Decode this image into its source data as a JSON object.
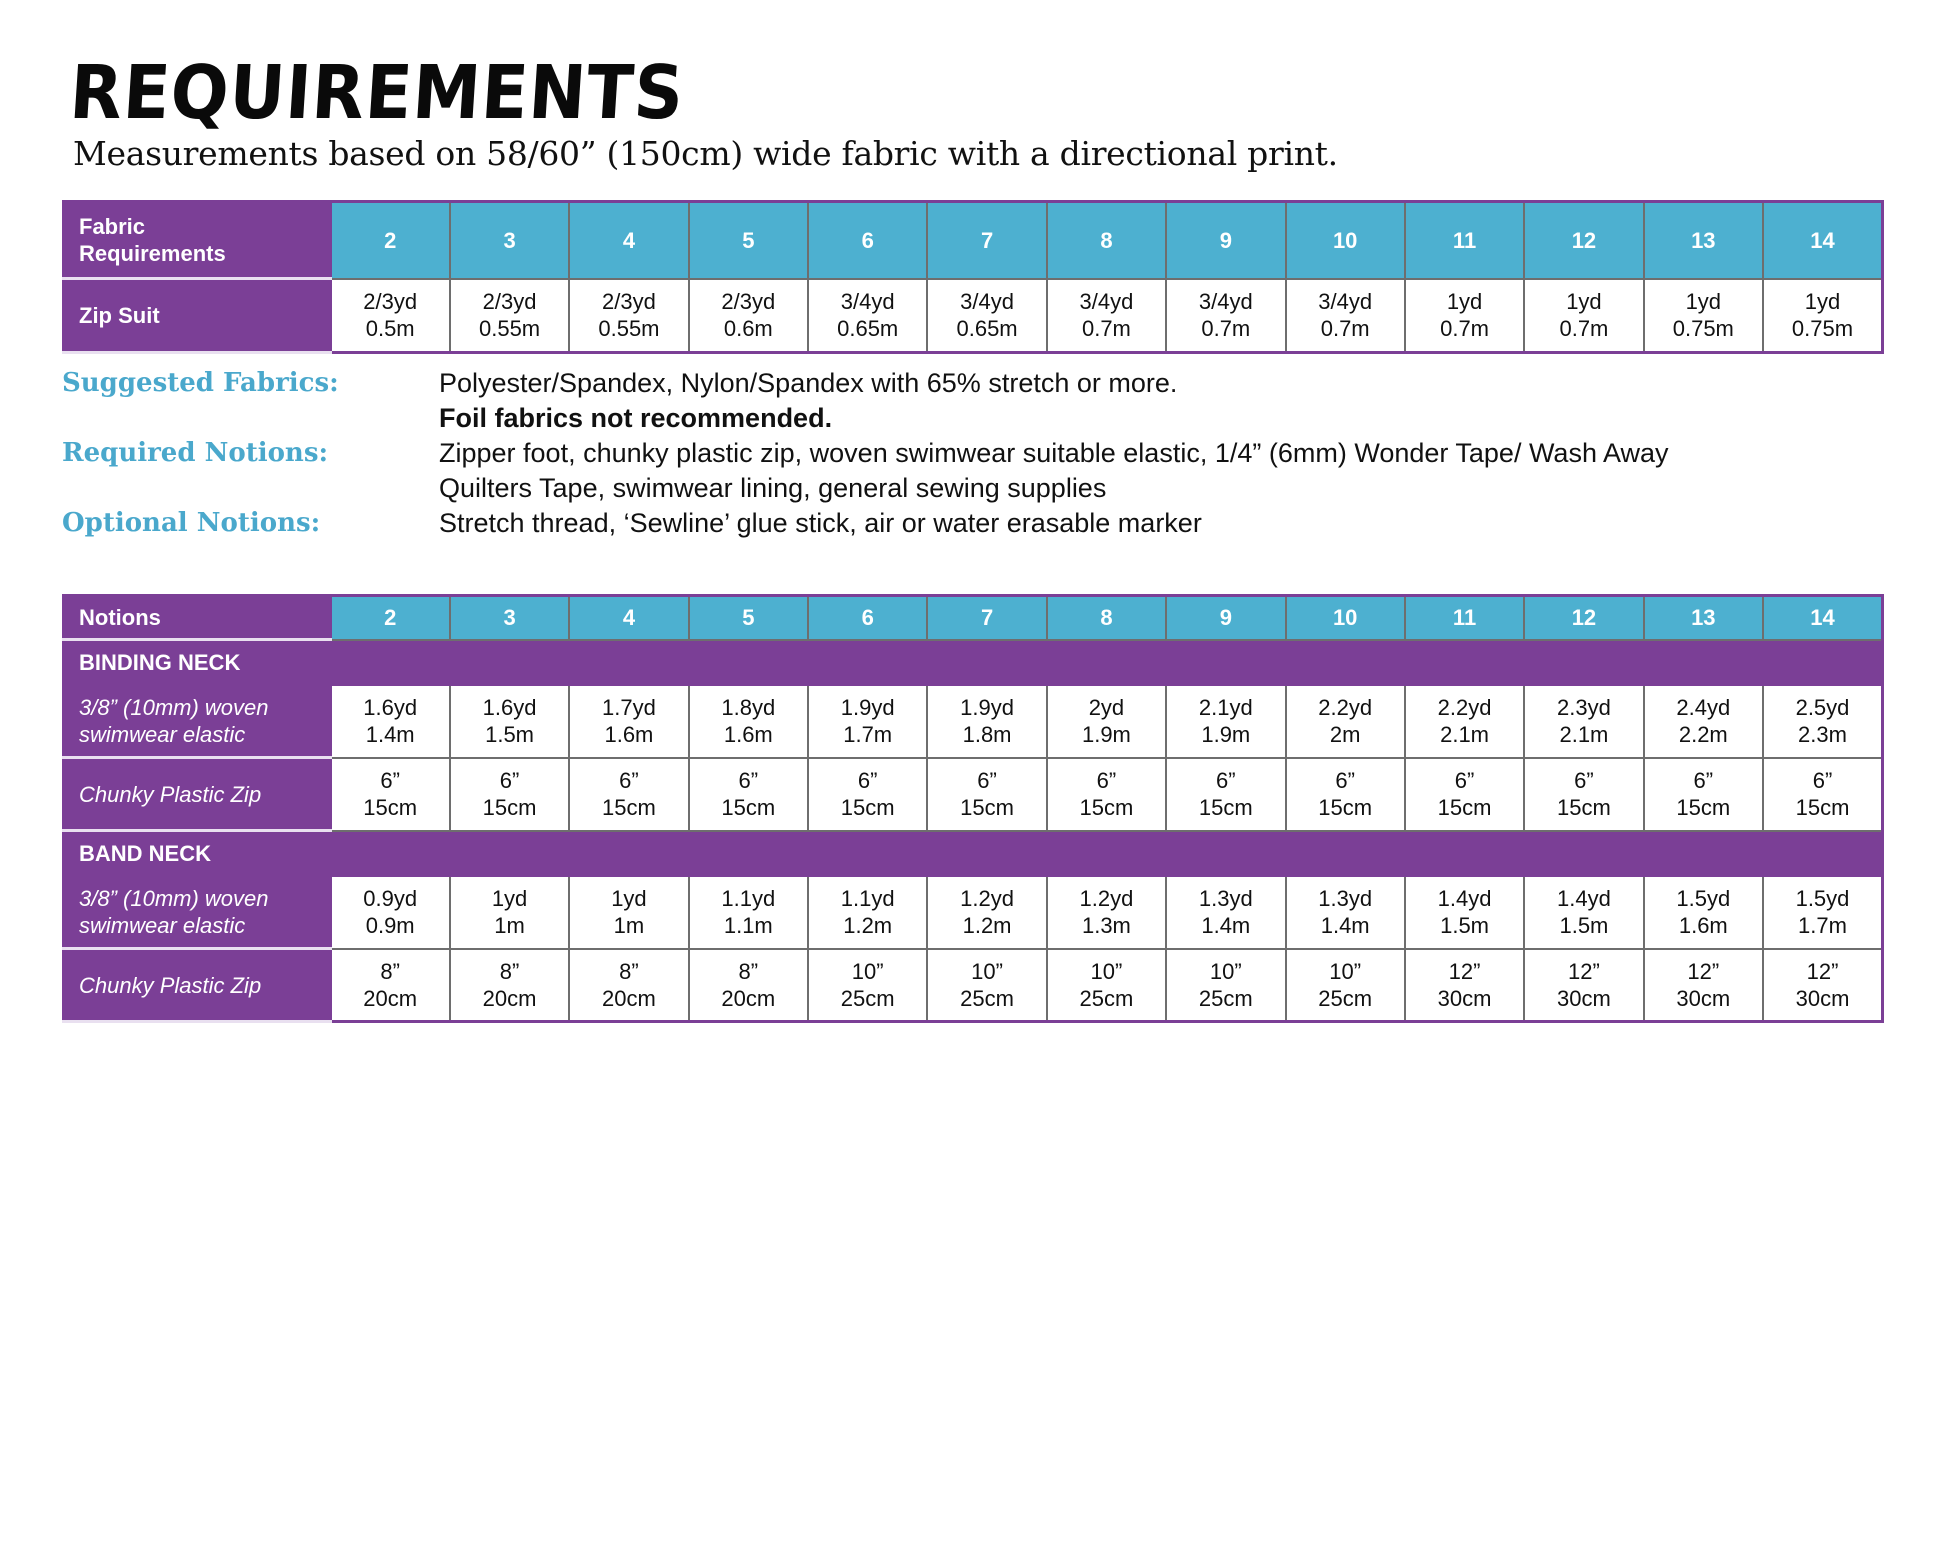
{
  "title": "REQUIREMENTS",
  "subtitle": "Measurements based on 58/60” (150cm) wide fabric with a directional print.",
  "colors": {
    "purple": "#7b3f96",
    "teal": "#4db0d0",
    "label_blue": "#4aa8cc"
  },
  "fabric_table": {
    "header_label": "Fabric Requirements",
    "sizes": [
      "2",
      "3",
      "4",
      "5",
      "6",
      "7",
      "8",
      "9",
      "10",
      "11",
      "12",
      "13",
      "14"
    ],
    "rows": [
      {
        "label": "Zip Suit",
        "values": [
          "2/3yd 0.5m",
          "2/3yd 0.55m",
          "2/3yd 0.55m",
          "2/3yd 0.6m",
          "3/4yd 0.65m",
          "3/4yd 0.65m",
          "3/4yd 0.7m",
          "3/4yd 0.7m",
          "3/4yd 0.7m",
          "1yd 0.7m",
          "1yd 0.7m",
          "1yd 0.75m",
          "1yd 0.75m"
        ]
      }
    ]
  },
  "notes": [
    {
      "label": "Suggested Fabrics:",
      "lines": [
        "Polyester/Spandex, Nylon/Spandex with 65% stretch or more."
      ],
      "bold_line": "Foil fabrics not recommended."
    },
    {
      "label": "Required Notions:",
      "lines": [
        "Zipper foot, chunky plastic zip, woven swimwear suitable elastic, 1/4” (6mm) Wonder Tape/ Wash Away",
        "Quilters Tape, swimwear lining, general sewing supplies"
      ]
    },
    {
      "label": "Optional Notions:",
      "lines": [
        "Stretch thread, ‘Sewline’ glue stick, air or water erasable marker"
      ]
    }
  ],
  "notions_table": {
    "header_label": "Notions",
    "sizes": [
      "2",
      "3",
      "4",
      "5",
      "6",
      "7",
      "8",
      "9",
      "10",
      "11",
      "12",
      "13",
      "14"
    ],
    "sections": [
      {
        "title": "BINDING NECK",
        "rows": [
          {
            "label": "3/8” (10mm) woven swimwear elastic",
            "values": [
              "1.6yd 1.4m",
              "1.6yd 1.5m",
              "1.7yd 1.6m",
              "1.8yd 1.6m",
              "1.9yd 1.7m",
              "1.9yd 1.8m",
              "2yd 1.9m",
              "2.1yd 1.9m",
              "2.2yd 2m",
              "2.2yd 2.1m",
              "2.3yd 2.1m",
              "2.4yd 2.2m",
              "2.5yd 2.3m"
            ]
          },
          {
            "label": "Chunky Plastic Zip",
            "values": [
              "6” 15cm",
              "6” 15cm",
              "6” 15cm",
              "6” 15cm",
              "6” 15cm",
              "6” 15cm",
              "6” 15cm",
              "6” 15cm",
              "6” 15cm",
              "6” 15cm",
              "6” 15cm",
              "6” 15cm",
              "6” 15cm"
            ]
          }
        ]
      },
      {
        "title": "BAND NECK",
        "rows": [
          {
            "label": "3/8” (10mm) woven swimwear elastic",
            "values": [
              "0.9yd 0.9m",
              "1yd 1m",
              "1yd 1m",
              "1.1yd 1.1m",
              "1.1yd 1.2m",
              "1.2yd 1.2m",
              "1.2yd 1.3m",
              "1.3yd 1.4m",
              "1.3yd 1.4m",
              "1.4yd 1.5m",
              "1.4yd 1.5m",
              "1.5yd 1.6m",
              "1.5yd 1.7m"
            ]
          },
          {
            "label": "Chunky Plastic Zip",
            "values": [
              "8” 20cm",
              "8” 20cm",
              "8” 20cm",
              "8” 20cm",
              "10” 25cm",
              "10” 25cm",
              "10” 25cm",
              "10” 25cm",
              "10” 25cm",
              "12” 30cm",
              "12” 30cm",
              "12” 30cm",
              "12” 30cm"
            ]
          }
        ]
      }
    ]
  }
}
